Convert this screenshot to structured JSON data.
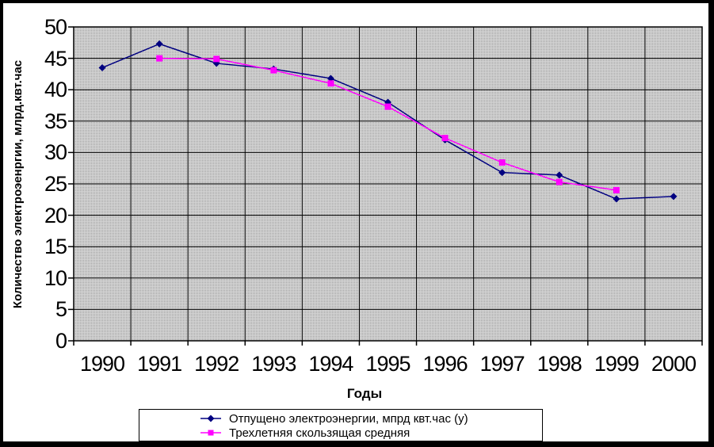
{
  "chart_data": {
    "type": "line",
    "title": "",
    "categories": [
      "1990",
      "1991",
      "1992",
      "1993",
      "1994",
      "1995",
      "1996",
      "1997",
      "1998",
      "1999",
      "2000"
    ],
    "series": [
      {
        "name": "Отпущено электроэнергии, мпрд квт.час (у)",
        "color": "#000080",
        "marker": "diamond",
        "values": [
          43.5,
          47.3,
          44.2,
          43.3,
          41.8,
          38.0,
          32.0,
          26.8,
          26.4,
          22.6,
          23.0
        ]
      },
      {
        "name": "Трехлетняя скользящая средняя",
        "color": "#ff00ff",
        "marker": "square",
        "values": [
          null,
          45.0,
          44.9,
          43.1,
          41.0,
          37.3,
          32.3,
          28.4,
          25.3,
          24.0,
          null
        ]
      }
    ],
    "xlabel": "Годы",
    "ylabel": "Количество электроэенргии, млрд.квт.час",
    "ylim": [
      0,
      50
    ],
    "ytick_step": 5,
    "grid": true,
    "legend_position": "bottom",
    "plot_bg_pattern": {
      "base": "#d5d5d5",
      "dot": "#9e9e9e"
    },
    "gridline_color": "#000000"
  }
}
